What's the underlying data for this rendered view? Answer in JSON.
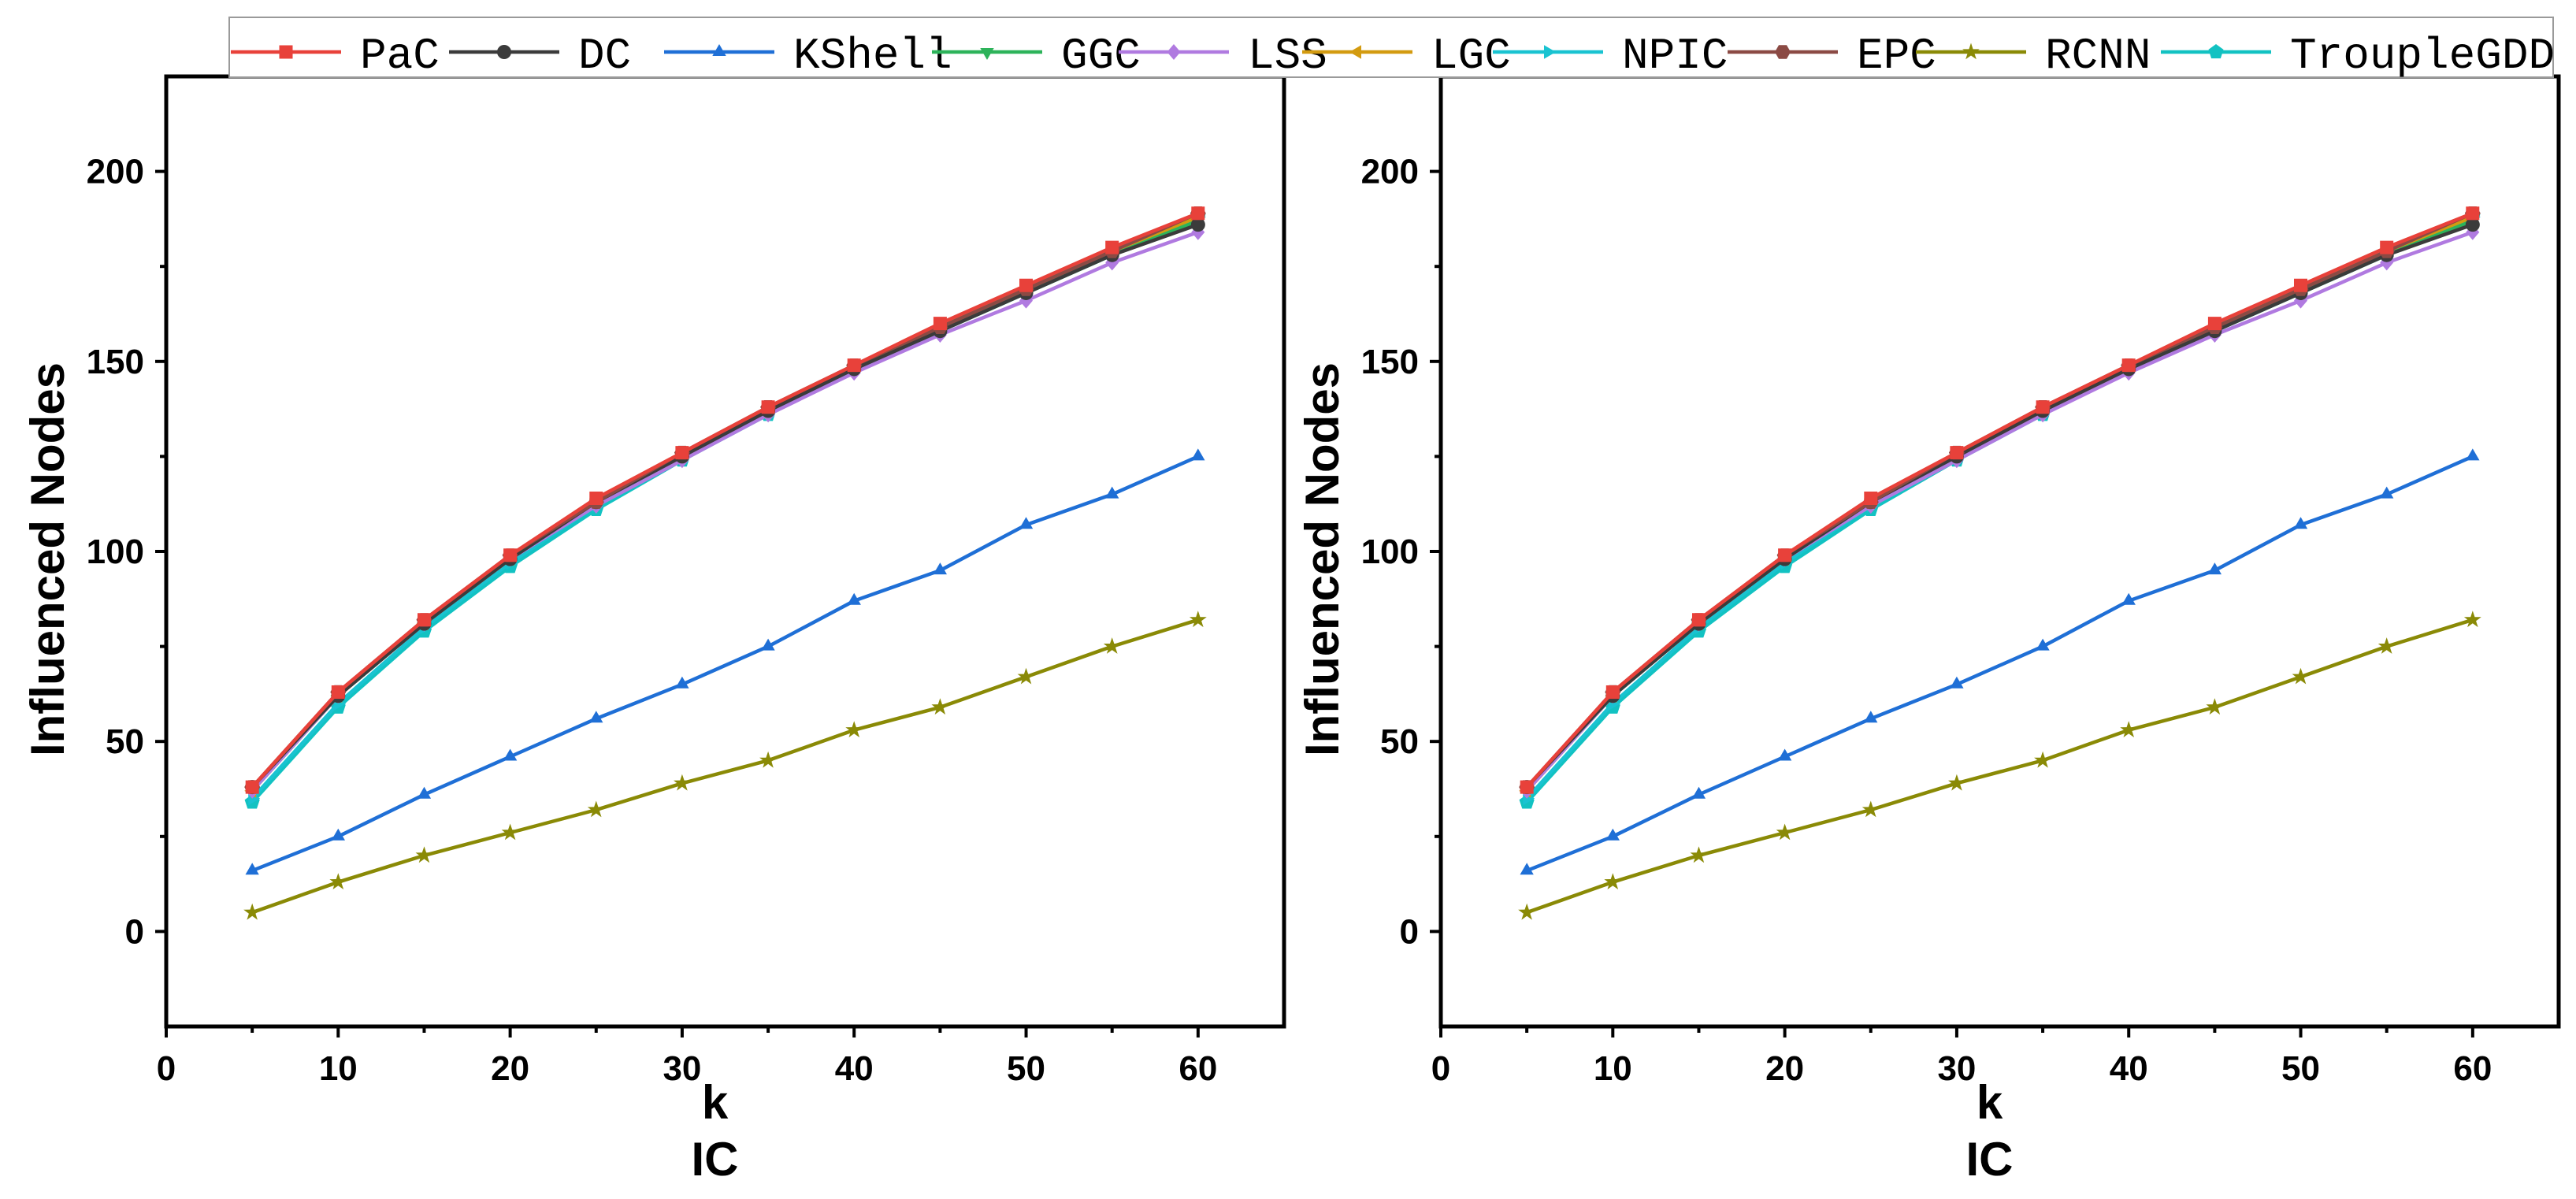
{
  "legend": [
    {
      "name": "PaC",
      "color": "#e8413a",
      "marker": "square"
    },
    {
      "name": "DC",
      "color": "#3b3b3b",
      "marker": "circle"
    },
    {
      "name": "KShell",
      "color": "#1f6fd6",
      "marker": "triangle-up"
    },
    {
      "name": "GGC",
      "color": "#2db35a",
      "marker": "triangle-down"
    },
    {
      "name": "LSS",
      "color": "#b07ae0",
      "marker": "diamond"
    },
    {
      "name": "LGC",
      "color": "#d39b10",
      "marker": "triangle-left"
    },
    {
      "name": "NPIC",
      "color": "#19c3d1",
      "marker": "triangle-right"
    },
    {
      "name": "EPC",
      "color": "#8b4a44",
      "marker": "hexagon"
    },
    {
      "name": "RCNN",
      "color": "#8a8a06",
      "marker": "star"
    },
    {
      "name": "TroupleGDD",
      "color": "#12c2c2",
      "marker": "pentagon"
    }
  ],
  "chart_data": [
    {
      "type": "line",
      "title": "IC",
      "xlabel": "k",
      "ylabel": "Influenced Nodes",
      "xlim": [
        0,
        65
      ],
      "ylim": [
        -25,
        225
      ],
      "xticks": [
        0,
        10,
        20,
        30,
        40,
        50,
        60
      ],
      "yticks": [
        0,
        50,
        100,
        150,
        200
      ],
      "x": [
        5,
        10,
        15,
        20,
        25,
        30,
        35,
        40,
        45,
        50,
        55,
        60
      ],
      "series": [
        {
          "name": "TroupleGDD",
          "values": [
            34,
            59,
            79,
            96,
            111,
            124,
            136,
            148,
            158,
            168,
            178,
            188
          ]
        },
        {
          "name": "NPIC",
          "values": [
            35,
            60,
            80,
            97,
            112,
            125,
            137,
            148,
            159,
            169,
            179,
            188
          ]
        },
        {
          "name": "LGC",
          "values": [
            37,
            62,
            81,
            98,
            113,
            125,
            137,
            148,
            159,
            169,
            179,
            188
          ]
        },
        {
          "name": "GGC",
          "values": [
            37,
            62,
            81,
            98,
            113,
            125,
            137,
            148,
            158,
            168,
            178,
            187
          ]
        },
        {
          "name": "LSS",
          "values": [
            37,
            62,
            81,
            98,
            112,
            124,
            136,
            147,
            157,
            166,
            176,
            184
          ]
        },
        {
          "name": "DC",
          "values": [
            38,
            62,
            81,
            98,
            113,
            125,
            137,
            148,
            158,
            168,
            178,
            186
          ]
        },
        {
          "name": "EPC",
          "values": [
            38,
            63,
            82,
            99,
            113,
            126,
            138,
            149,
            159,
            169,
            179,
            189
          ]
        },
        {
          "name": "PaC",
          "values": [
            38,
            63,
            82,
            99,
            114,
            126,
            138,
            149,
            160,
            170,
            180,
            189
          ]
        },
        {
          "name": "KShell",
          "values": [
            16,
            25,
            36,
            46,
            56,
            65,
            75,
            87,
            95,
            107,
            115,
            125
          ]
        },
        {
          "name": "RCNN",
          "values": [
            5,
            13,
            20,
            26,
            32,
            39,
            45,
            53,
            59,
            67,
            75,
            82
          ]
        }
      ]
    },
    {
      "type": "line",
      "title": "IC",
      "xlabel": "k",
      "ylabel": "Influenced Nodes",
      "xlim": [
        0,
        65
      ],
      "ylim": [
        -25,
        225
      ],
      "xticks": [
        0,
        10,
        20,
        30,
        40,
        50,
        60
      ],
      "yticks": [
        0,
        50,
        100,
        150,
        200
      ],
      "x": [
        5,
        10,
        15,
        20,
        25,
        30,
        35,
        40,
        45,
        50,
        55,
        60
      ],
      "series": [
        {
          "name": "TroupleGDD",
          "values": [
            34,
            59,
            79,
            96,
            111,
            124,
            136,
            148,
            158,
            168,
            178,
            188
          ]
        },
        {
          "name": "NPIC",
          "values": [
            35,
            60,
            80,
            97,
            112,
            125,
            137,
            148,
            159,
            169,
            179,
            188
          ]
        },
        {
          "name": "LGC",
          "values": [
            37,
            62,
            81,
            98,
            113,
            125,
            137,
            148,
            159,
            169,
            179,
            188
          ]
        },
        {
          "name": "GGC",
          "values": [
            37,
            62,
            81,
            98,
            113,
            125,
            137,
            148,
            158,
            168,
            178,
            187
          ]
        },
        {
          "name": "LSS",
          "values": [
            37,
            62,
            81,
            98,
            112,
            124,
            136,
            147,
            157,
            166,
            176,
            184
          ]
        },
        {
          "name": "DC",
          "values": [
            38,
            62,
            81,
            98,
            113,
            125,
            137,
            148,
            158,
            168,
            178,
            186
          ]
        },
        {
          "name": "EPC",
          "values": [
            38,
            63,
            82,
            99,
            113,
            126,
            138,
            149,
            159,
            169,
            179,
            189
          ]
        },
        {
          "name": "PaC",
          "values": [
            38,
            63,
            82,
            99,
            114,
            126,
            138,
            149,
            160,
            170,
            180,
            189
          ]
        },
        {
          "name": "KShell",
          "values": [
            16,
            25,
            36,
            46,
            56,
            65,
            75,
            87,
            95,
            107,
            115,
            125
          ]
        },
        {
          "name": "RCNN",
          "values": [
            5,
            13,
            20,
            26,
            32,
            39,
            45,
            53,
            59,
            67,
            75,
            82
          ]
        }
      ]
    }
  ]
}
